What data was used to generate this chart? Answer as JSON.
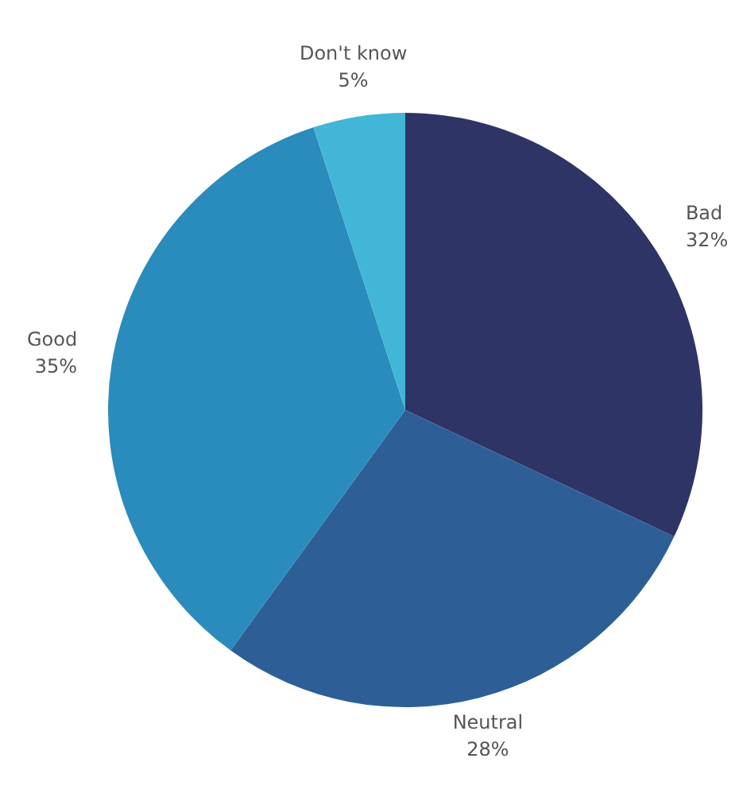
{
  "chart_data": {
    "type": "pie",
    "categories": [
      "Bad",
      "Neutral",
      "Good",
      "Don't know"
    ],
    "values": [
      32,
      28,
      35,
      5
    ],
    "value_labels": [
      "32%",
      "28%",
      "35%",
      "5%"
    ],
    "colors": [
      "#2e3466",
      "#2d5f96",
      "#2a8bbd",
      "#42b6d6"
    ]
  }
}
